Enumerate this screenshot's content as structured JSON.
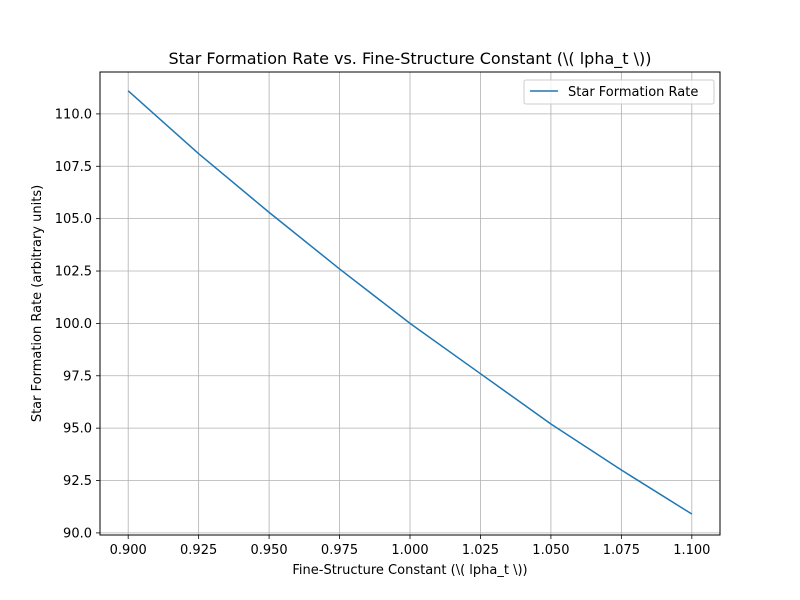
{
  "chart_data": {
    "type": "line",
    "title": "Star Formation Rate vs. Fine-Structure Constant (\\( \u0007lpha_t \\))",
    "xlabel": "Fine-Structure Constant (\\( \u0007lpha_t \\))",
    "ylabel": "Star Formation Rate (arbitrary units)",
    "xlim": [
      0.89,
      1.11
    ],
    "ylim": [
      89.9,
      112.0
    ],
    "x_ticks": [
      0.9,
      0.925,
      0.95,
      0.975,
      1.0,
      1.025,
      1.05,
      1.075,
      1.1
    ],
    "x_tick_labels": [
      "0.900",
      "0.925",
      "0.950",
      "0.975",
      "1.000",
      "1.025",
      "1.050",
      "1.075",
      "1.100"
    ],
    "y_ticks": [
      90.0,
      92.5,
      95.0,
      97.5,
      100.0,
      102.5,
      105.0,
      107.5,
      110.0
    ],
    "y_tick_labels": [
      "90.0",
      "92.5",
      "95.0",
      "97.5",
      "100.0",
      "102.5",
      "105.0",
      "107.5",
      "110.0"
    ],
    "grid": true,
    "legend_position": "top-right",
    "series": [
      {
        "name": "Star Formation Rate",
        "color": "#1f77b4",
        "x": [
          0.9,
          0.925,
          0.95,
          0.975,
          1.0,
          1.025,
          1.05,
          1.075,
          1.1
        ],
        "y": [
          111.1,
          108.1,
          105.3,
          102.6,
          100.0,
          97.6,
          95.2,
          93.0,
          90.9
        ]
      }
    ]
  }
}
